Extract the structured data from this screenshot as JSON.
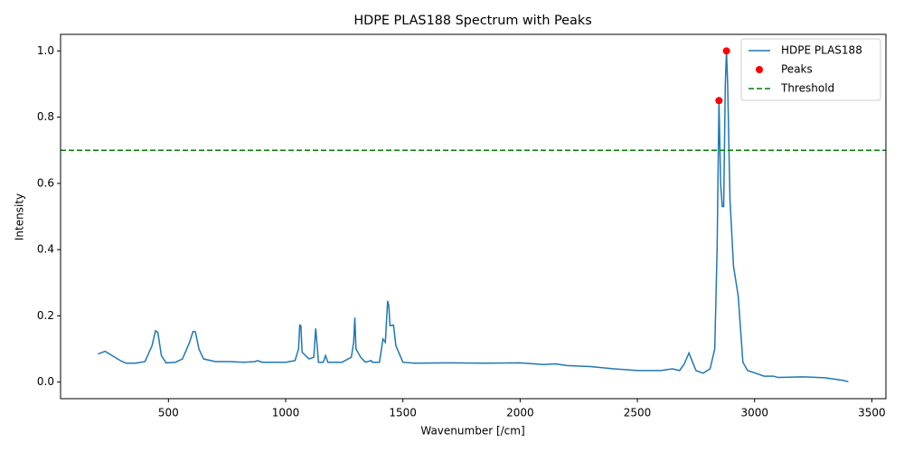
{
  "chart_data": {
    "type": "line",
    "title": "HDPE PLAS188 Spectrum with Peaks",
    "xlabel": "Wavenumber [/cm]",
    "ylabel": "Intensity",
    "xlim": [
      40,
      3560
    ],
    "ylim": [
      -0.05,
      1.05
    ],
    "xticks": [
      500,
      1000,
      1500,
      2000,
      2500,
      3000,
      3500
    ],
    "yticks": [
      {
        "value": 0,
        "label": "0.0"
      },
      {
        "value": 0.2,
        "label": "0.2"
      },
      {
        "value": 0.4,
        "label": "0.4"
      },
      {
        "value": 0.6,
        "label": "0.6"
      },
      {
        "value": 0.8,
        "label": "0.8"
      },
      {
        "value": 1,
        "label": "1.0"
      }
    ],
    "legend": "upper right",
    "series": [
      {
        "name": "HDPE PLAS188",
        "type": "line",
        "color": "#1f77b4",
        "x": [
          200,
          230,
          260,
          300,
          320,
          360,
          400,
          430,
          445,
          455,
          470,
          490,
          530,
          560,
          590,
          605,
          615,
          630,
          650,
          700,
          760,
          820,
          870,
          880,
          900,
          1000,
          1040,
          1055,
          1060,
          1065,
          1070,
          1100,
          1120,
          1128,
          1132,
          1140,
          1160,
          1170,
          1180,
          1240,
          1280,
          1290,
          1295,
          1300,
          1320,
          1340,
          1365,
          1370,
          1400,
          1415,
          1425,
          1435,
          1440,
          1445,
          1460,
          1470,
          1500,
          1550,
          1700,
          1850,
          2000,
          2100,
          2150,
          2200,
          2300,
          2400,
          2500,
          2600,
          2650,
          2680,
          2700,
          2720,
          2730,
          2750,
          2780,
          2810,
          2830,
          2840,
          2848,
          2855,
          2862,
          2868,
          2875,
          2880,
          2885,
          2895,
          2910,
          2930,
          2950,
          2970,
          3000,
          3040,
          3080,
          3100,
          3150,
          3200,
          3300,
          3380,
          3400
        ],
        "values": [
          0.085,
          0.093,
          0.08,
          0.063,
          0.057,
          0.057,
          0.062,
          0.11,
          0.155,
          0.15,
          0.08,
          0.058,
          0.06,
          0.07,
          0.12,
          0.153,
          0.152,
          0.1,
          0.07,
          0.062,
          0.062,
          0.06,
          0.062,
          0.065,
          0.06,
          0.06,
          0.065,
          0.1,
          0.172,
          0.17,
          0.09,
          0.07,
          0.075,
          0.162,
          0.13,
          0.06,
          0.06,
          0.08,
          0.06,
          0.06,
          0.075,
          0.12,
          0.195,
          0.1,
          0.075,
          0.06,
          0.065,
          0.06,
          0.06,
          0.13,
          0.12,
          0.245,
          0.23,
          0.17,
          0.172,
          0.11,
          0.06,
          0.057,
          0.058,
          0.057,
          0.058,
          0.053,
          0.055,
          0.05,
          0.047,
          0.04,
          0.035,
          0.035,
          0.04,
          0.035,
          0.055,
          0.088,
          0.07,
          0.035,
          0.027,
          0.04,
          0.1,
          0.4,
          0.85,
          0.6,
          0.53,
          0.53,
          0.9,
          1.0,
          0.9,
          0.55,
          0.35,
          0.26,
          0.06,
          0.035,
          0.028,
          0.018,
          0.018,
          0.014,
          0.015,
          0.016,
          0.013,
          0.005,
          0.001
        ]
      },
      {
        "name": "Peaks",
        "type": "scatter",
        "color": "#ff0000",
        "x": [
          2848,
          2880
        ],
        "values": [
          0.85,
          1.0
        ]
      },
      {
        "name": "Threshold",
        "type": "hline",
        "color": "#008000",
        "values": [
          0.7
        ]
      }
    ]
  }
}
